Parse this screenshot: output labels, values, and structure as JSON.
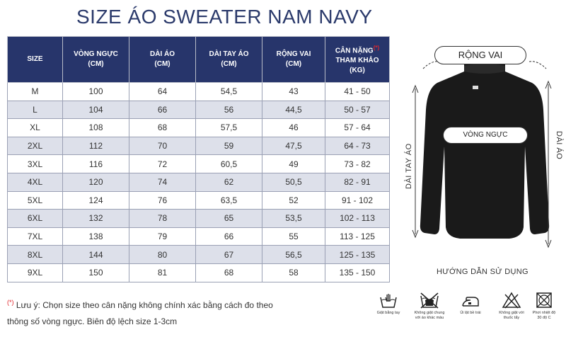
{
  "title": "SIZE ÁO SWEATER NAM NAVY",
  "table": {
    "headers": [
      {
        "line1": "SIZE",
        "line2": "",
        "line3": ""
      },
      {
        "line1": "VÒNG NGỰC",
        "line2": "(CM)",
        "line3": ""
      },
      {
        "line1": "DÀI ÁO",
        "line2": "(CM)",
        "line3": ""
      },
      {
        "line1": "DÀI TAY ÁO",
        "line2": "(CM)",
        "line3": ""
      },
      {
        "line1": "RỘNG VAI",
        "line2": "(CM)",
        "line3": ""
      },
      {
        "line1": "CÂN NẶNG",
        "line2": "THAM KHẢO",
        "line3": "(KG)"
      }
    ],
    "required_mark": "(*)",
    "rows": [
      [
        "M",
        "100",
        "64",
        "54,5",
        "43",
        "41 - 50"
      ],
      [
        "L",
        "104",
        "66",
        "56",
        "44,5",
        "50 - 57"
      ],
      [
        "XL",
        "108",
        "68",
        "57,5",
        "46",
        "57 - 64"
      ],
      [
        "2XL",
        "112",
        "70",
        "59",
        "47,5",
        "64 - 73"
      ],
      [
        "3XL",
        "116",
        "72",
        "60,5",
        "49",
        "73 - 82"
      ],
      [
        "4XL",
        "120",
        "74",
        "62",
        "50,5",
        "82 - 91"
      ],
      [
        "5XL",
        "124",
        "76",
        "63,5",
        "52",
        "91 - 102"
      ],
      [
        "6XL",
        "132",
        "78",
        "65",
        "53,5",
        "102 - 113"
      ],
      [
        "7XL",
        "138",
        "79",
        "66",
        "55",
        "113 - 125"
      ],
      [
        "8XL",
        "144",
        "80",
        "67",
        "56,5",
        "125 - 135"
      ],
      [
        "9XL",
        "150",
        "81",
        "68",
        "58",
        "135 - 150"
      ]
    ]
  },
  "note": {
    "mark": "(*)",
    "line1": "Lưu ý: Chọn size theo cân nặng không chính xác bằng cách đo theo",
    "line2": "thông số vòng ngực. Biên độ lệch size 1-3cm"
  },
  "diagram": {
    "shoulder_label": "RỘNG VAI",
    "chest_label": "VÒNG NGỰC",
    "sleeve_label": "DÀI TAY ÁO",
    "length_label": "DÀI ÁO",
    "guide_title": "HƯỚNG DẪN SỬ DỤNG"
  },
  "care": [
    {
      "icon": "hand-wash-icon",
      "label1": "Giặt bằng tay",
      "label2": ""
    },
    {
      "icon": "no-mixed-wash-icon",
      "label1": "Không giặt chung",
      "label2": "với áo khác màu"
    },
    {
      "icon": "iron-inside-out-icon",
      "label1": "Ủi lật bề trái",
      "label2": ""
    },
    {
      "icon": "no-bleach-icon",
      "label1": "Không giặt với",
      "label2": "thuốc tẩy"
    },
    {
      "icon": "dry-below-30-icon",
      "label1": "Phơi nhiệt độ",
      "label2": "30 độ C"
    }
  ]
}
